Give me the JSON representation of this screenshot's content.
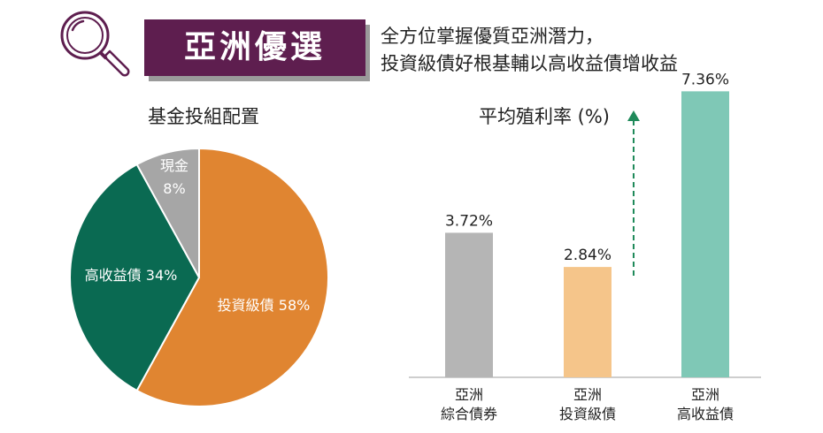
{
  "header": {
    "badge_title": "亞洲優選",
    "subtitle_line1": "全方位掌握優質亞洲潛力，",
    "subtitle_line2": "投資級債好根基輔以高收益債增收益",
    "brand_color": "#5e1e4f",
    "icon": "search-icon"
  },
  "chart_data": [
    {
      "type": "pie",
      "title": "基金投組配置",
      "slices": [
        {
          "label": "投資級債",
          "value": 58,
          "display": "投資級債 58%",
          "color": "#e08531"
        },
        {
          "label": "高收益債",
          "value": 34,
          "display": "高收益債 34%",
          "color": "#0a6a52"
        },
        {
          "label": "現金",
          "value": 8,
          "display_line1": "現金",
          "display_line2": "8%",
          "color": "#a6a6a6"
        }
      ]
    },
    {
      "type": "bar",
      "title": "平均殖利率 (%)",
      "categories": [
        {
          "line1": "亞洲",
          "line2": "綜合債券"
        },
        {
          "line1": "亞洲",
          "line2": "投資級債"
        },
        {
          "line1": "亞洲",
          "line2": "高收益債"
        }
      ],
      "values": [
        3.72,
        2.84,
        7.36
      ],
      "value_labels": [
        "3.72%",
        "2.84%",
        "7.36%"
      ],
      "colors": [
        "#b5b5b5",
        "#f5c58a",
        "#7fc8b6"
      ],
      "ylim": [
        0,
        7.8
      ],
      "arrow_color": "#1f8a5a"
    }
  ]
}
